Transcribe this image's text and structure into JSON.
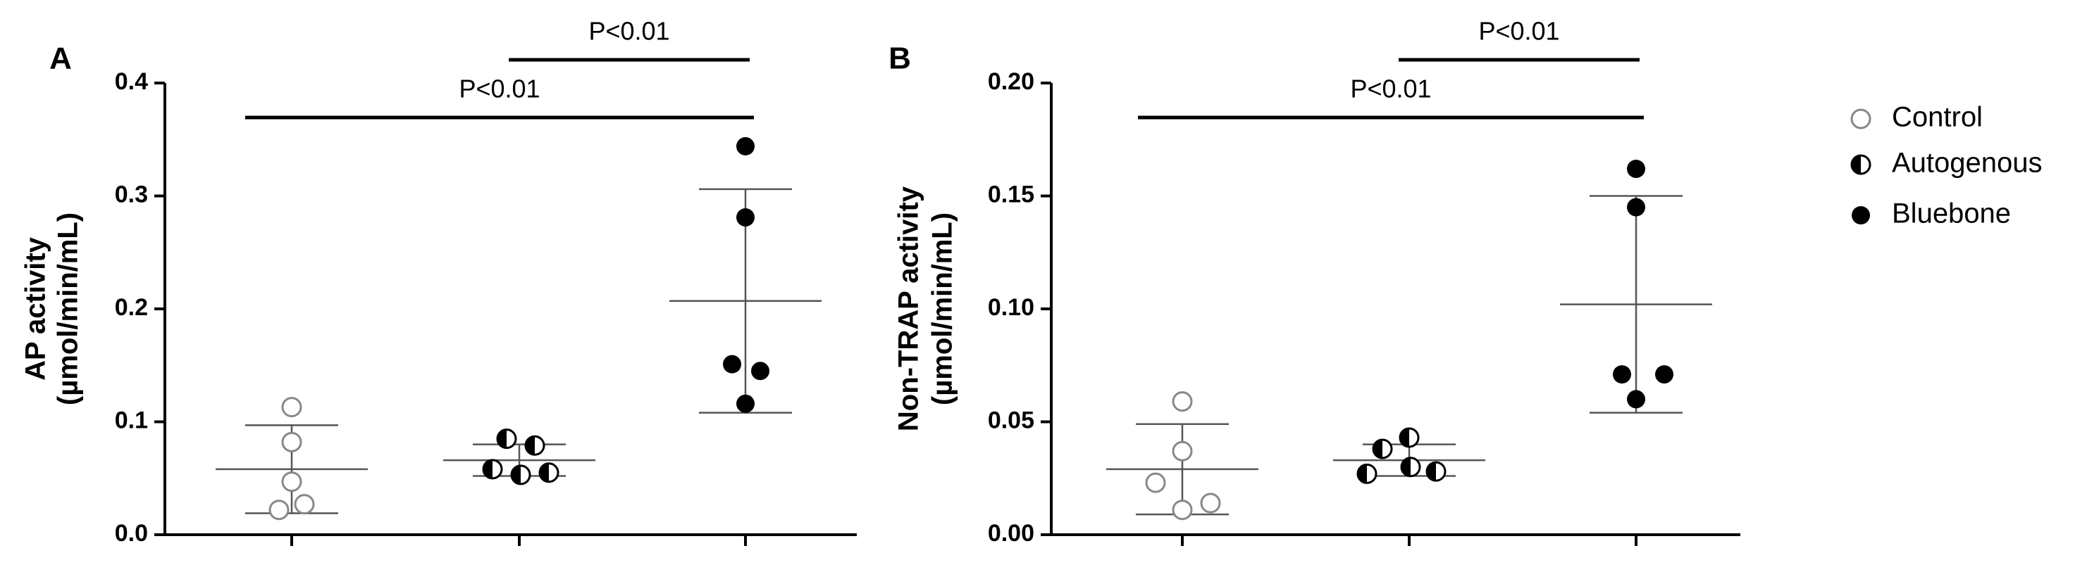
{
  "chart_data": [
    {
      "type": "scatter",
      "panel_label": "A",
      "ylabel": [
        "AP activity",
        "(µmol/min/mL)"
      ],
      "ylim": [
        0,
        0.4
      ],
      "yticks": [
        {
          "value": 0,
          "label": "0.0"
        },
        0.1,
        0.2,
        0.3,
        0.4
      ],
      "annotations": [
        "P<0.01",
        "P<0.01"
      ],
      "series": [
        {
          "name": "Control",
          "color": "#888888",
          "marker": "open",
          "values": [
            0.113,
            0.082,
            0.047,
            0.022,
            0.027
          ],
          "mean": 0.058,
          "error": 0.039
        },
        {
          "name": "Autogenous",
          "color": "#000000",
          "marker": "half",
          "values": [
            0.085,
            0.079,
            0.058,
            0.053,
            0.055
          ],
          "mean": 0.066,
          "error": 0.014
        },
        {
          "name": "Bluebone",
          "color": "#000000",
          "marker": "filled",
          "values": [
            0.344,
            0.281,
            0.151,
            0.145,
            0.116
          ],
          "mean": 0.207,
          "error": 0.099
        }
      ]
    },
    {
      "type": "scatter",
      "panel_label": "B",
      "ylabel": [
        "Non-TRAP activity",
        "(µmol/min/mL)"
      ],
      "ylim": [
        0,
        0.2
      ],
      "yticks": [
        {
          "value": 0,
          "label": "0.00"
        },
        {
          "value": 0.05,
          "label": "0.05"
        },
        {
          "value": 0.1,
          "label": "0.10"
        },
        {
          "value": 0.15,
          "label": "0.15"
        },
        {
          "value": 0.2,
          "label": "0.20"
        }
      ],
      "annotations": [
        "P<0.01",
        "P<0.01"
      ],
      "series": [
        {
          "color": "#888888",
          "marker": "open",
          "values": [
            0.059,
            0.037,
            0.023,
            0.011,
            0.014
          ],
          "mean": 0.029,
          "error": 0.02
        },
        {
          "color": "#000000",
          "marker": "half",
          "values": [
            0.043,
            0.038,
            0.03,
            0.027,
            0.028
          ],
          "mean": 0.033,
          "error": 0.007
        },
        {
          "color": "#000000",
          "marker": "filled",
          "values": [
            0.162,
            0.145,
            0.071,
            0.071,
            0.06
          ],
          "mean": 0.102,
          "error": 0.048
        }
      ]
    }
  ]
}
